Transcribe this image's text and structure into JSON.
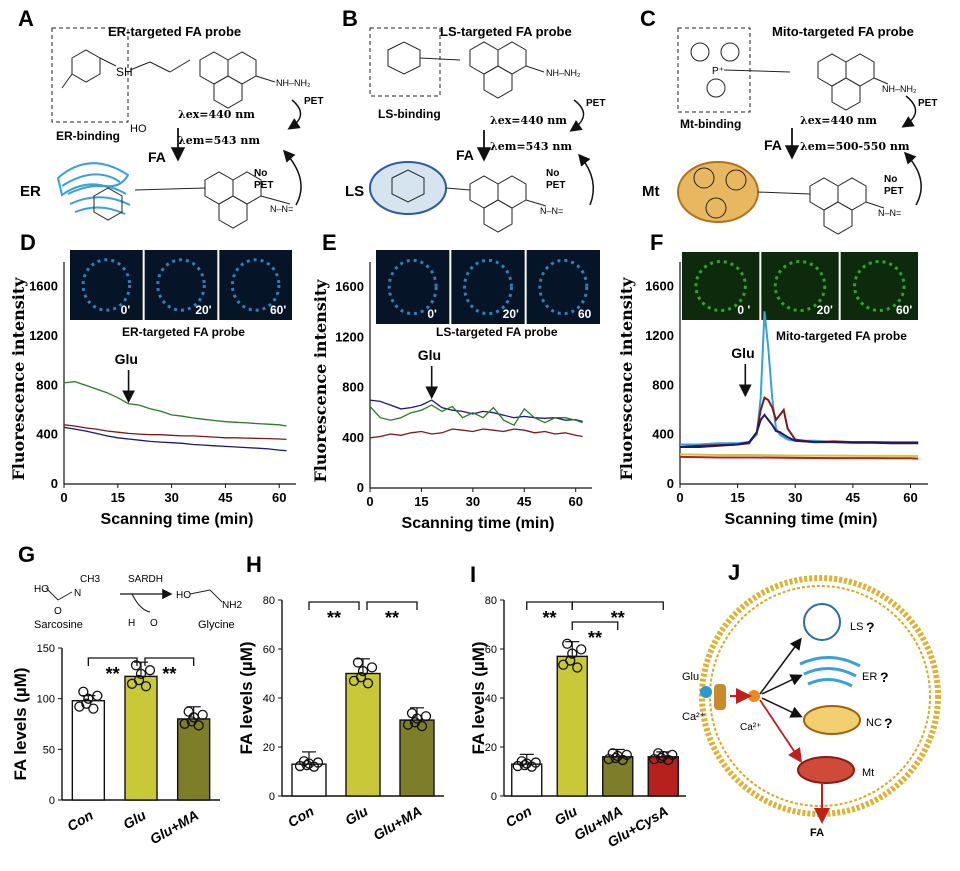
{
  "colors": {
    "green": "#2a7a2a",
    "blue": "#1b1b6e",
    "red": "#7a1a1a",
    "cyan": "#3aa0d8",
    "yellow": "#c9c93a",
    "olive": "#7d7d2a",
    "crimson": "#b8201e"
  },
  "panels": {
    "A": {
      "letter": "A",
      "title": "ER-targeted FA probe",
      "binding": "ER-binding",
      "site": "ER",
      "lex": "λex=440 nm",
      "lem": "λem=543 nm",
      "pet": "PET",
      "nopet1": "No",
      "nopet2": "PET",
      "fa": "FA",
      "sh": "SH",
      "ho": "HO"
    },
    "B": {
      "letter": "B",
      "title": "LS-targeted FA probe",
      "binding": "LS-binding",
      "site": "LS",
      "lex": "λex=440 nm",
      "lem": "λem=543 nm",
      "pet": "PET",
      "nopet1": "No",
      "nopet2": "PET",
      "fa": "FA"
    },
    "C": {
      "letter": "C",
      "title": "Mito-targeted FA probe",
      "binding": "Mt-binding",
      "site": "Mt",
      "lex": "λex=440 nm",
      "lem": "λem=500-550 nm",
      "pet": "PET",
      "nopet1": "No",
      "nopet2": "PET",
      "fa": "FA"
    }
  },
  "chart_data": [
    {
      "panel": "D",
      "type": "line",
      "letter": "D",
      "title": "ER-targeted FA probe",
      "ylabel": "Fluorescence intensity",
      "xlabel": "Scanning time (min)",
      "glu": "Glu",
      "xlim": [
        0,
        63
      ],
      "ylim": [
        0,
        1800
      ],
      "x_ticks": [
        "0",
        "15",
        "30",
        "45",
        "60"
      ],
      "y_ticks": [
        "0",
        "400",
        "800",
        "1200",
        "1600"
      ],
      "time_labels": [
        "0'",
        "20'",
        "60'"
      ],
      "series": [
        {
          "name": "green",
          "x": [
            0,
            3,
            6,
            9,
            12,
            15,
            18,
            21,
            24,
            27,
            30,
            33,
            36,
            39,
            42,
            45,
            48,
            51,
            54,
            57,
            60,
            62
          ],
          "values": [
            820,
            830,
            800,
            770,
            740,
            700,
            650,
            640,
            610,
            590,
            560,
            550,
            535,
            525,
            515,
            505,
            500,
            495,
            490,
            485,
            480,
            470
          ]
        },
        {
          "name": "red",
          "x": [
            0,
            3,
            6,
            9,
            12,
            15,
            18,
            21,
            24,
            27,
            30,
            33,
            36,
            39,
            42,
            45,
            48,
            51,
            54,
            57,
            60,
            62
          ],
          "values": [
            480,
            470,
            455,
            445,
            430,
            420,
            410,
            405,
            400,
            400,
            395,
            390,
            390,
            385,
            380,
            375,
            375,
            372,
            370,
            368,
            365,
            362
          ]
        },
        {
          "name": "blue",
          "x": [
            0,
            3,
            6,
            9,
            12,
            15,
            18,
            21,
            24,
            27,
            30,
            33,
            36,
            39,
            42,
            45,
            48,
            51,
            54,
            57,
            60,
            62
          ],
          "values": [
            460,
            445,
            430,
            410,
            390,
            375,
            365,
            355,
            345,
            340,
            335,
            330,
            320,
            315,
            310,
            305,
            300,
            295,
            290,
            285,
            275,
            270
          ]
        }
      ]
    },
    {
      "panel": "E",
      "type": "line",
      "letter": "E",
      "title": "LS-targeted FA probe",
      "ylabel": "Fluorescence intensity",
      "xlabel": "Scanning time (min)",
      "glu": "Glu",
      "xlim": [
        0,
        63
      ],
      "ylim": [
        0,
        1800
      ],
      "x_ticks": [
        "0",
        "15",
        "30",
        "45",
        "60"
      ],
      "y_ticks": [
        "0",
        "400",
        "800",
        "1200",
        "1600"
      ],
      "time_labels": [
        "0'",
        "20'",
        "60"
      ],
      "series": [
        {
          "name": "blue",
          "x": [
            0,
            3,
            6,
            9,
            12,
            15,
            18,
            21,
            24,
            27,
            30,
            33,
            36,
            39,
            42,
            45,
            48,
            51,
            54,
            57,
            60,
            62
          ],
          "values": [
            700,
            690,
            660,
            630,
            640,
            660,
            700,
            640,
            620,
            610,
            590,
            610,
            600,
            580,
            560,
            570,
            560,
            555,
            560,
            540,
            545,
            530
          ]
        },
        {
          "name": "green",
          "x": [
            0,
            3,
            6,
            9,
            12,
            15,
            18,
            21,
            24,
            27,
            30,
            33,
            36,
            39,
            42,
            45,
            48,
            51,
            54,
            57,
            60,
            62
          ],
          "values": [
            650,
            560,
            540,
            560,
            600,
            620,
            660,
            610,
            650,
            560,
            600,
            560,
            640,
            540,
            500,
            630,
            560,
            520,
            560,
            560,
            540,
            520
          ]
        },
        {
          "name": "red",
          "x": [
            0,
            3,
            6,
            9,
            12,
            15,
            18,
            21,
            24,
            27,
            30,
            33,
            36,
            39,
            42,
            45,
            48,
            51,
            54,
            57,
            60,
            62
          ],
          "values": [
            400,
            410,
            430,
            420,
            440,
            450,
            430,
            440,
            470,
            460,
            450,
            470,
            460,
            450,
            470,
            460,
            440,
            450,
            430,
            440,
            420,
            410
          ]
        }
      ]
    },
    {
      "panel": "F",
      "type": "line",
      "letter": "F",
      "title": "Mito-targeted FA probe",
      "ylabel": "Fluorescence intensity",
      "xlabel": "Scanning time (min)",
      "glu": "Glu",
      "xlim": [
        0,
        63
      ],
      "ylim": [
        0,
        1800
      ],
      "x_ticks": [
        "0",
        "15",
        "30",
        "45",
        "60"
      ],
      "y_ticks": [
        "0",
        "400",
        "800",
        "1200",
        "1600"
      ],
      "time_labels": [
        "0 '",
        "20'",
        "60'"
      ],
      "series": [
        {
          "name": "cyan",
          "x": [
            0,
            5,
            10,
            15,
            18,
            20,
            21,
            22,
            23,
            24,
            25,
            26,
            27,
            28,
            30,
            35,
            40,
            45,
            50,
            55,
            60,
            62
          ],
          "values": [
            320,
            320,
            330,
            330,
            340,
            400,
            700,
            1400,
            1100,
            700,
            450,
            400,
            380,
            360,
            350,
            350,
            340,
            340,
            340,
            340,
            340,
            340
          ]
        },
        {
          "name": "red",
          "x": [
            0,
            5,
            10,
            15,
            18,
            20,
            21,
            22,
            23,
            24,
            25,
            26,
            27,
            28,
            30,
            35,
            40,
            45,
            50,
            55,
            60,
            62
          ],
          "values": [
            300,
            310,
            315,
            320,
            330,
            420,
            600,
            700,
            680,
            620,
            520,
            560,
            600,
            450,
            360,
            340,
            345,
            340,
            340,
            335,
            335,
            335
          ]
        },
        {
          "name": "blue",
          "x": [
            0,
            5,
            10,
            15,
            18,
            20,
            21,
            22,
            23,
            24,
            25,
            26,
            27,
            28,
            30,
            35,
            40,
            45,
            50,
            55,
            60,
            62
          ],
          "values": [
            300,
            300,
            310,
            320,
            340,
            420,
            520,
            560,
            520,
            480,
            430,
            420,
            400,
            380,
            350,
            340,
            340,
            335,
            335,
            330,
            330,
            330
          ]
        },
        {
          "name": "yellow",
          "x": [
            0,
            10,
            20,
            30,
            40,
            50,
            60,
            62
          ],
          "values": [
            240,
            235,
            235,
            230,
            230,
            228,
            228,
            226
          ]
        },
        {
          "name": "crimson",
          "x": [
            0,
            10,
            20,
            30,
            40,
            50,
            60,
            62
          ],
          "values": [
            220,
            215,
            215,
            212,
            210,
            210,
            208,
            206
          ]
        }
      ]
    },
    {
      "panel": "G",
      "type": "bar",
      "letter": "G",
      "ylabel": "FA levels (µM)",
      "categories": [
        "Con",
        "Glu",
        "Glu+MA"
      ],
      "values": [
        98,
        122,
        80
      ],
      "errors": [
        5,
        14,
        12
      ],
      "ylim": [
        0,
        150
      ],
      "y_ticks": [
        "0",
        "50",
        "100",
        "150"
      ],
      "sig": [
        "**",
        "**"
      ],
      "scheme": {
        "enzyme": "SARDH",
        "substrate": "Sarcosine",
        "product": "Glycine",
        "ch3": "CH3",
        "h": "H",
        "o": "O",
        "ho": "HO",
        "nh2": "NH2",
        "n": "N"
      }
    },
    {
      "panel": "H",
      "type": "bar",
      "letter": "H",
      "ylabel": "FA levels (µM)",
      "categories": [
        "Con",
        "Glu",
        "Glu+MA"
      ],
      "values": [
        13,
        50,
        31
      ],
      "errors": [
        5,
        6,
        5
      ],
      "ylim": [
        0,
        80
      ],
      "y_ticks": [
        "0",
        "20",
        "40",
        "60",
        "80"
      ],
      "sig": [
        "**",
        "**"
      ]
    },
    {
      "panel": "I",
      "type": "bar",
      "letter": "I",
      "ylabel": "FA levels (µM)",
      "categories": [
        "Con",
        "Glu",
        "Glu+MA",
        "Glu+CysA"
      ],
      "values": [
        13,
        57,
        16,
        16
      ],
      "errors": [
        4,
        6,
        3,
        2
      ],
      "ylim": [
        0,
        80
      ],
      "y_ticks": [
        "0",
        "20",
        "40",
        "60",
        "80"
      ],
      "sig": [
        "**",
        "**",
        "**"
      ]
    }
  ],
  "panel_j": {
    "letter": "J",
    "glu": "Glu",
    "ca": "Ca²⁺",
    "ca2": "Ca²⁺",
    "ls": "LS",
    "er": "ER",
    "nc": "NC",
    "mt": "Mt",
    "q": "?",
    "fa": "FA"
  }
}
